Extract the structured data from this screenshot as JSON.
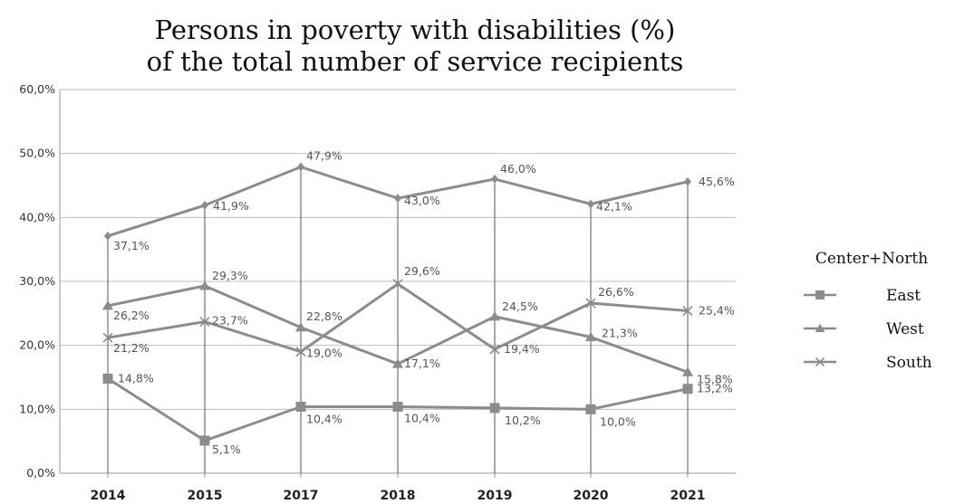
{
  "chart_data": {
    "type": "line",
    "title_lines": [
      "Persons in poverty with disabilities (%)",
      "of the total number of service recipients"
    ],
    "categories": [
      "2014",
      "2015",
      "2017",
      "2018",
      "2019",
      "2020",
      "2021"
    ],
    "y_ticks": [
      "0,0%",
      "10,0%",
      "20,0%",
      "30,0%",
      "40,0%",
      "50,0%",
      "60,0%"
    ],
    "ylim": [
      0,
      60
    ],
    "grid": true,
    "legend_position": "right",
    "colors": {
      "series": "#8c8c8c",
      "grid": "#bdbdbd",
      "axis": "#999999",
      "drop": "#555555"
    },
    "series": [
      {
        "name": "Center+North",
        "marker": "diamond",
        "values": [
          37.1,
          41.9,
          47.9,
          43.0,
          46.0,
          42.1,
          45.6
        ],
        "labels": [
          "37,1%",
          "41,9%",
          "47,9%",
          "43,0%",
          "46,0%",
          "42,1%",
          "45,6%"
        ]
      },
      {
        "name": "East",
        "marker": "square",
        "values": [
          14.8,
          5.1,
          10.4,
          10.4,
          10.2,
          10.0,
          13.2
        ],
        "labels": [
          "14,8%",
          "5,1%",
          "10,4%",
          "10,4%",
          "10,2%",
          "10,0%",
          "13,2%"
        ]
      },
      {
        "name": "West",
        "marker": "triangle",
        "values": [
          26.2,
          29.3,
          22.8,
          17.1,
          24.5,
          21.3,
          15.8
        ],
        "labels": [
          "26,2%",
          "29,3%",
          "22,8%",
          "17,1%",
          "24,5%",
          "21,3%",
          "15,8%"
        ]
      },
      {
        "name": "South",
        "marker": "cross",
        "values": [
          21.2,
          23.7,
          19.0,
          29.6,
          19.4,
          26.6,
          25.4
        ],
        "labels": [
          "21,2%",
          "23,7%",
          "19,0%",
          "29,6%",
          "19,4%",
          "26,6%",
          "25,4%"
        ]
      }
    ]
  }
}
